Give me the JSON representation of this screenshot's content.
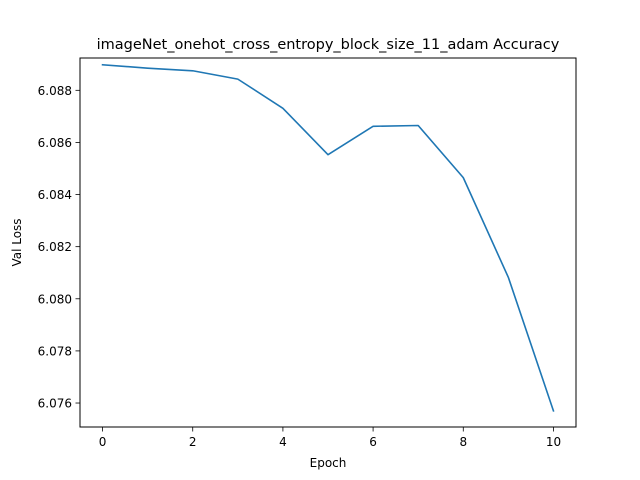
{
  "chart_data": {
    "type": "line",
    "title": "imageNet_onehot_cross_entropy_block_size_11_adam Accuracy",
    "xlabel": "Epoch",
    "ylabel": "Val Loss",
    "xlim": [
      -0.5,
      10.5
    ],
    "ylim": [
      6.07508,
      6.08924
    ],
    "xticks": [
      0,
      2,
      4,
      6,
      8,
      10
    ],
    "xtick_labels": [
      "0",
      "2",
      "4",
      "6",
      "8",
      "10"
    ],
    "yticks": [
      6.076,
      6.078,
      6.08,
      6.082,
      6.084,
      6.086,
      6.088
    ],
    "ytick_labels": [
      "6.076",
      "6.078",
      "6.080",
      "6.082",
      "6.084",
      "6.086",
      "6.088"
    ],
    "grid": false,
    "series": [
      {
        "color": "#1f77b4",
        "x": [
          0,
          1,
          2,
          3,
          4,
          5,
          6,
          7,
          8,
          9,
          10
        ],
        "values": [
          6.08898,
          6.08885,
          6.08875,
          6.08843,
          6.08731,
          6.08553,
          6.08662,
          6.08665,
          6.08465,
          6.08082,
          6.0757
        ]
      }
    ]
  }
}
